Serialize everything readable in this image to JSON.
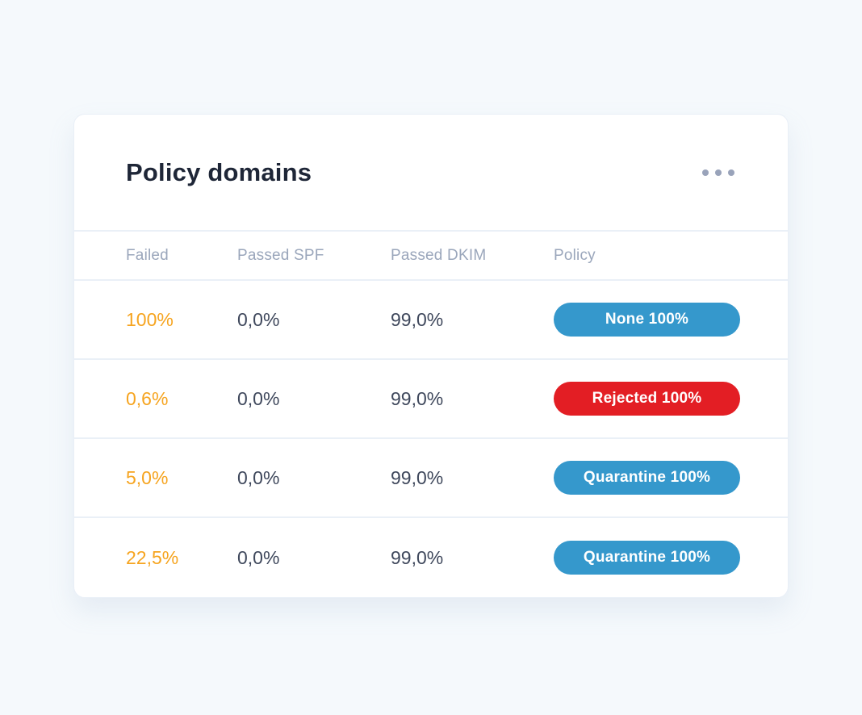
{
  "card": {
    "title": "Policy domains",
    "menu_icon": "ellipsis-icon"
  },
  "table": {
    "columns": [
      "Failed",
      "Passed SPF",
      "Passed DKIM",
      "Policy"
    ],
    "rows": [
      {
        "failed": "100%",
        "passed_spf": "0,0%",
        "passed_dkim": "99,0%",
        "policy": "None 100%",
        "policy_color": "#3598cc"
      },
      {
        "failed": "0,6%",
        "passed_spf": "0,0%",
        "passed_dkim": "99,0%",
        "policy": "Rejected 100%",
        "policy_color": "#e31e24"
      },
      {
        "failed": "5,0%",
        "passed_spf": "0,0%",
        "passed_dkim": "99,0%",
        "policy": "Quarantine 100%",
        "policy_color": "#3598cc"
      },
      {
        "failed": "22,5%",
        "passed_spf": "0,0%",
        "passed_dkim": "99,0%",
        "policy": "Quarantine 100%",
        "policy_color": "#3598cc"
      }
    ]
  },
  "colors": {
    "page_background": "#f5f9fc",
    "card_background": "#ffffff",
    "divider": "#eaf0f7",
    "title_text": "#1e2637",
    "header_text": "#9aa6bb",
    "value_text": "#3f485c",
    "failed_accent": "#f6a41f",
    "badge_blue": "#3598cc",
    "badge_red": "#e31e24",
    "menu_dots": "#99a3ba"
  }
}
